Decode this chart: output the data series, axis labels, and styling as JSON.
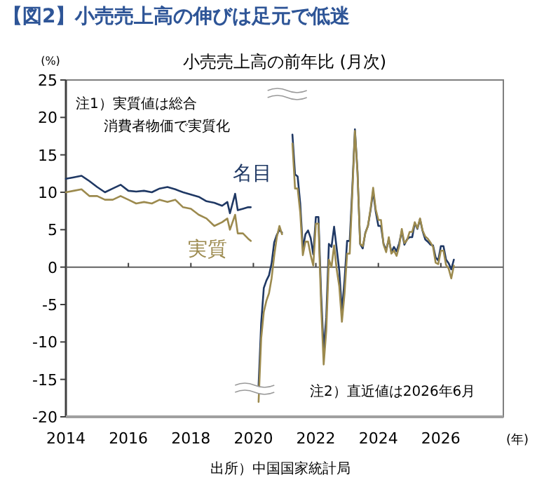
{
  "chart_data": {
    "type": "line",
    "title": "【図2】小売売上高の伸びは足元で低迷",
    "subtitle": "小売売上高の前年比 (月次)",
    "ylabel": "(%)",
    "xlabel": "(年)",
    "xlim": [
      "2014",
      "2028"
    ],
    "xticks": [
      "2014",
      "2016",
      "2018",
      "2020",
      "2022",
      "2024",
      "2026"
    ],
    "ylim": [
      -20,
      25
    ],
    "yticks": [
      -20,
      -15,
      -10,
      -5,
      0,
      5,
      10,
      15,
      20,
      25
    ],
    "annotations": [
      "注1）実質値は総合",
      "消費者物価で実質化",
      "注2）直近値は2026年6月",
      "出所）中国国家統計局"
    ],
    "series": [
      {
        "name": "名目",
        "color": "#1f3864",
        "x": [
          "2014-01",
          "2014-04",
          "2014-07",
          "2014-10",
          "2015-01",
          "2015-04",
          "2015-07",
          "2015-10",
          "2016-01",
          "2016-04",
          "2016-07",
          "2016-10",
          "2017-01",
          "2017-04",
          "2017-07",
          "2017-10",
          "2018-01",
          "2018-04",
          "2018-07",
          "2018-10",
          "2019-01",
          "2019-03",
          "2019-04",
          "2019-06",
          "2019-07",
          "2019-09",
          "2019-11",
          "2019-12",
          "2020-01",
          "2020-02",
          "2020-03",
          "2020-04",
          "2020-05",
          "2020-06",
          "2020-07",
          "2020-08",
          "2020-09",
          "2020-10",
          "2020-11",
          "2020-12",
          "2021-01",
          "2021-02",
          "2021-03",
          "2021-04",
          "2021-05",
          "2021-06",
          "2021-07",
          "2021-08",
          "2021-09",
          "2021-10",
          "2021-11",
          "2021-12",
          "2022-01",
          "2022-02",
          "2022-03",
          "2022-04",
          "2022-05",
          "2022-06",
          "2022-07",
          "2022-08",
          "2022-09",
          "2022-10",
          "2022-11",
          "2022-12",
          "2023-01",
          "2023-02",
          "2023-03",
          "2023-04",
          "2023-05",
          "2023-06",
          "2023-07",
          "2023-08",
          "2023-09",
          "2023-10",
          "2023-11",
          "2023-12",
          "2024-01",
          "2024-02",
          "2024-03",
          "2024-04",
          "2024-05",
          "2024-06",
          "2024-07",
          "2024-08",
          "2024-09",
          "2024-10",
          "2024-11",
          "2024-12",
          "2025-01",
          "2025-02",
          "2025-03",
          "2025-04",
          "2025-05",
          "2025-06",
          "2025-07",
          "2025-08",
          "2025-09",
          "2025-10",
          "2025-11",
          "2025-12",
          "2026-01",
          "2026-02",
          "2026-03",
          "2026-04",
          "2026-05",
          "2026-06"
        ],
        "values": [
          11.8,
          12.0,
          12.2,
          11.5,
          10.7,
          10.0,
          10.5,
          11.0,
          10.2,
          10.1,
          10.2,
          10.0,
          10.5,
          10.7,
          10.4,
          10.0,
          9.7,
          9.4,
          8.8,
          8.6,
          8.2,
          8.7,
          7.2,
          9.8,
          7.6,
          7.8,
          8.0,
          8.0,
          null,
          null,
          -15.8,
          -7.5,
          -2.8,
          -1.8,
          -1.1,
          0.5,
          3.3,
          4.3,
          5.0,
          4.6,
          null,
          null,
          null,
          17.7,
          12.4,
          12.1,
          8.5,
          2.5,
          4.4,
          4.9,
          3.9,
          1.7,
          6.7,
          6.7,
          -3.5,
          -11.1,
          -6.7,
          3.1,
          2.7,
          5.4,
          2.5,
          -0.5,
          -5.9,
          -1.8,
          3.5,
          3.5,
          10.6,
          18.4,
          12.7,
          3.1,
          2.5,
          4.6,
          5.5,
          7.6,
          10.1,
          7.4,
          5.5,
          5.5,
          3.1,
          2.3,
          3.7,
          2.0,
          2.7,
          2.1,
          3.2,
          4.8,
          3.0,
          3.7,
          4.0,
          4.0,
          5.9,
          5.1,
          6.4,
          4.8,
          3.7,
          3.4,
          3.0,
          2.9,
          1.3,
          0.9,
          2.8,
          2.8,
          1.0,
          0.5,
          -0.3,
          1.0
        ]
      },
      {
        "name": "実質",
        "color": "#9c8a4e",
        "x": [
          "2014-01",
          "2014-04",
          "2014-07",
          "2014-10",
          "2015-01",
          "2015-04",
          "2015-07",
          "2015-10",
          "2016-01",
          "2016-04",
          "2016-07",
          "2016-10",
          "2017-01",
          "2017-04",
          "2017-07",
          "2017-10",
          "2018-01",
          "2018-04",
          "2018-07",
          "2018-10",
          "2019-01",
          "2019-03",
          "2019-04",
          "2019-06",
          "2019-07",
          "2019-09",
          "2019-11",
          "2019-12",
          "2020-01",
          "2020-02",
          "2020-03",
          "2020-04",
          "2020-05",
          "2020-06",
          "2020-07",
          "2020-08",
          "2020-09",
          "2020-10",
          "2020-11",
          "2020-12",
          "2021-01",
          "2021-02",
          "2021-03",
          "2021-04",
          "2021-05",
          "2021-06",
          "2021-07",
          "2021-08",
          "2021-09",
          "2021-10",
          "2021-11",
          "2021-12",
          "2022-01",
          "2022-02",
          "2022-03",
          "2022-04",
          "2022-05",
          "2022-06",
          "2022-07",
          "2022-08",
          "2022-09",
          "2022-10",
          "2022-11",
          "2022-12",
          "2023-01",
          "2023-02",
          "2023-03",
          "2023-04",
          "2023-05",
          "2023-06",
          "2023-07",
          "2023-08",
          "2023-09",
          "2023-10",
          "2023-11",
          "2023-12",
          "2024-01",
          "2024-02",
          "2024-03",
          "2024-04",
          "2024-05",
          "2024-06",
          "2024-07",
          "2024-08",
          "2024-09",
          "2024-10",
          "2024-11",
          "2024-12",
          "2025-01",
          "2025-02",
          "2025-03",
          "2025-04",
          "2025-05",
          "2025-06",
          "2025-07",
          "2025-08",
          "2025-09",
          "2025-10",
          "2025-11",
          "2025-12",
          "2026-01",
          "2026-02",
          "2026-03",
          "2026-04",
          "2026-05",
          "2026-06"
        ],
        "values": [
          10.0,
          10.2,
          10.4,
          9.5,
          9.5,
          9.0,
          9.0,
          9.5,
          9.0,
          8.5,
          8.7,
          8.5,
          9.0,
          8.7,
          9.0,
          8.0,
          7.8,
          7.0,
          6.5,
          5.5,
          6.0,
          6.5,
          5.0,
          7.0,
          4.5,
          4.5,
          3.8,
          3.5,
          null,
          null,
          -18,
          -9.5,
          -6,
          -4.5,
          -3.5,
          -1.5,
          1.5,
          4,
          5.5,
          4.4,
          null,
          null,
          null,
          16.5,
          10.5,
          10.5,
          7.3,
          1.6,
          3.4,
          3.4,
          1.6,
          0.2,
          5.8,
          5.8,
          -5,
          -13,
          -8.5,
          1,
          0,
          2.9,
          -0.3,
          -2.6,
          -7.3,
          -3.6,
          1.8,
          1.8,
          9.9,
          18.2,
          12.5,
          3.1,
          2.8,
          4.5,
          5.5,
          7.8,
          10.6,
          7.7,
          6.3,
          6.3,
          3.0,
          2.0,
          4.0,
          1.8,
          2.2,
          1.5,
          2.8,
          5.1,
          3.2,
          3.6,
          4.7,
          4.7,
          6.0,
          5.2,
          6.5,
          4.9,
          4.1,
          3.8,
          3.3,
          2.7,
          0.6,
          0.4,
          2.2,
          2.2,
          0.3,
          -0.2,
          -1.5,
          0.2
        ]
      }
    ]
  }
}
